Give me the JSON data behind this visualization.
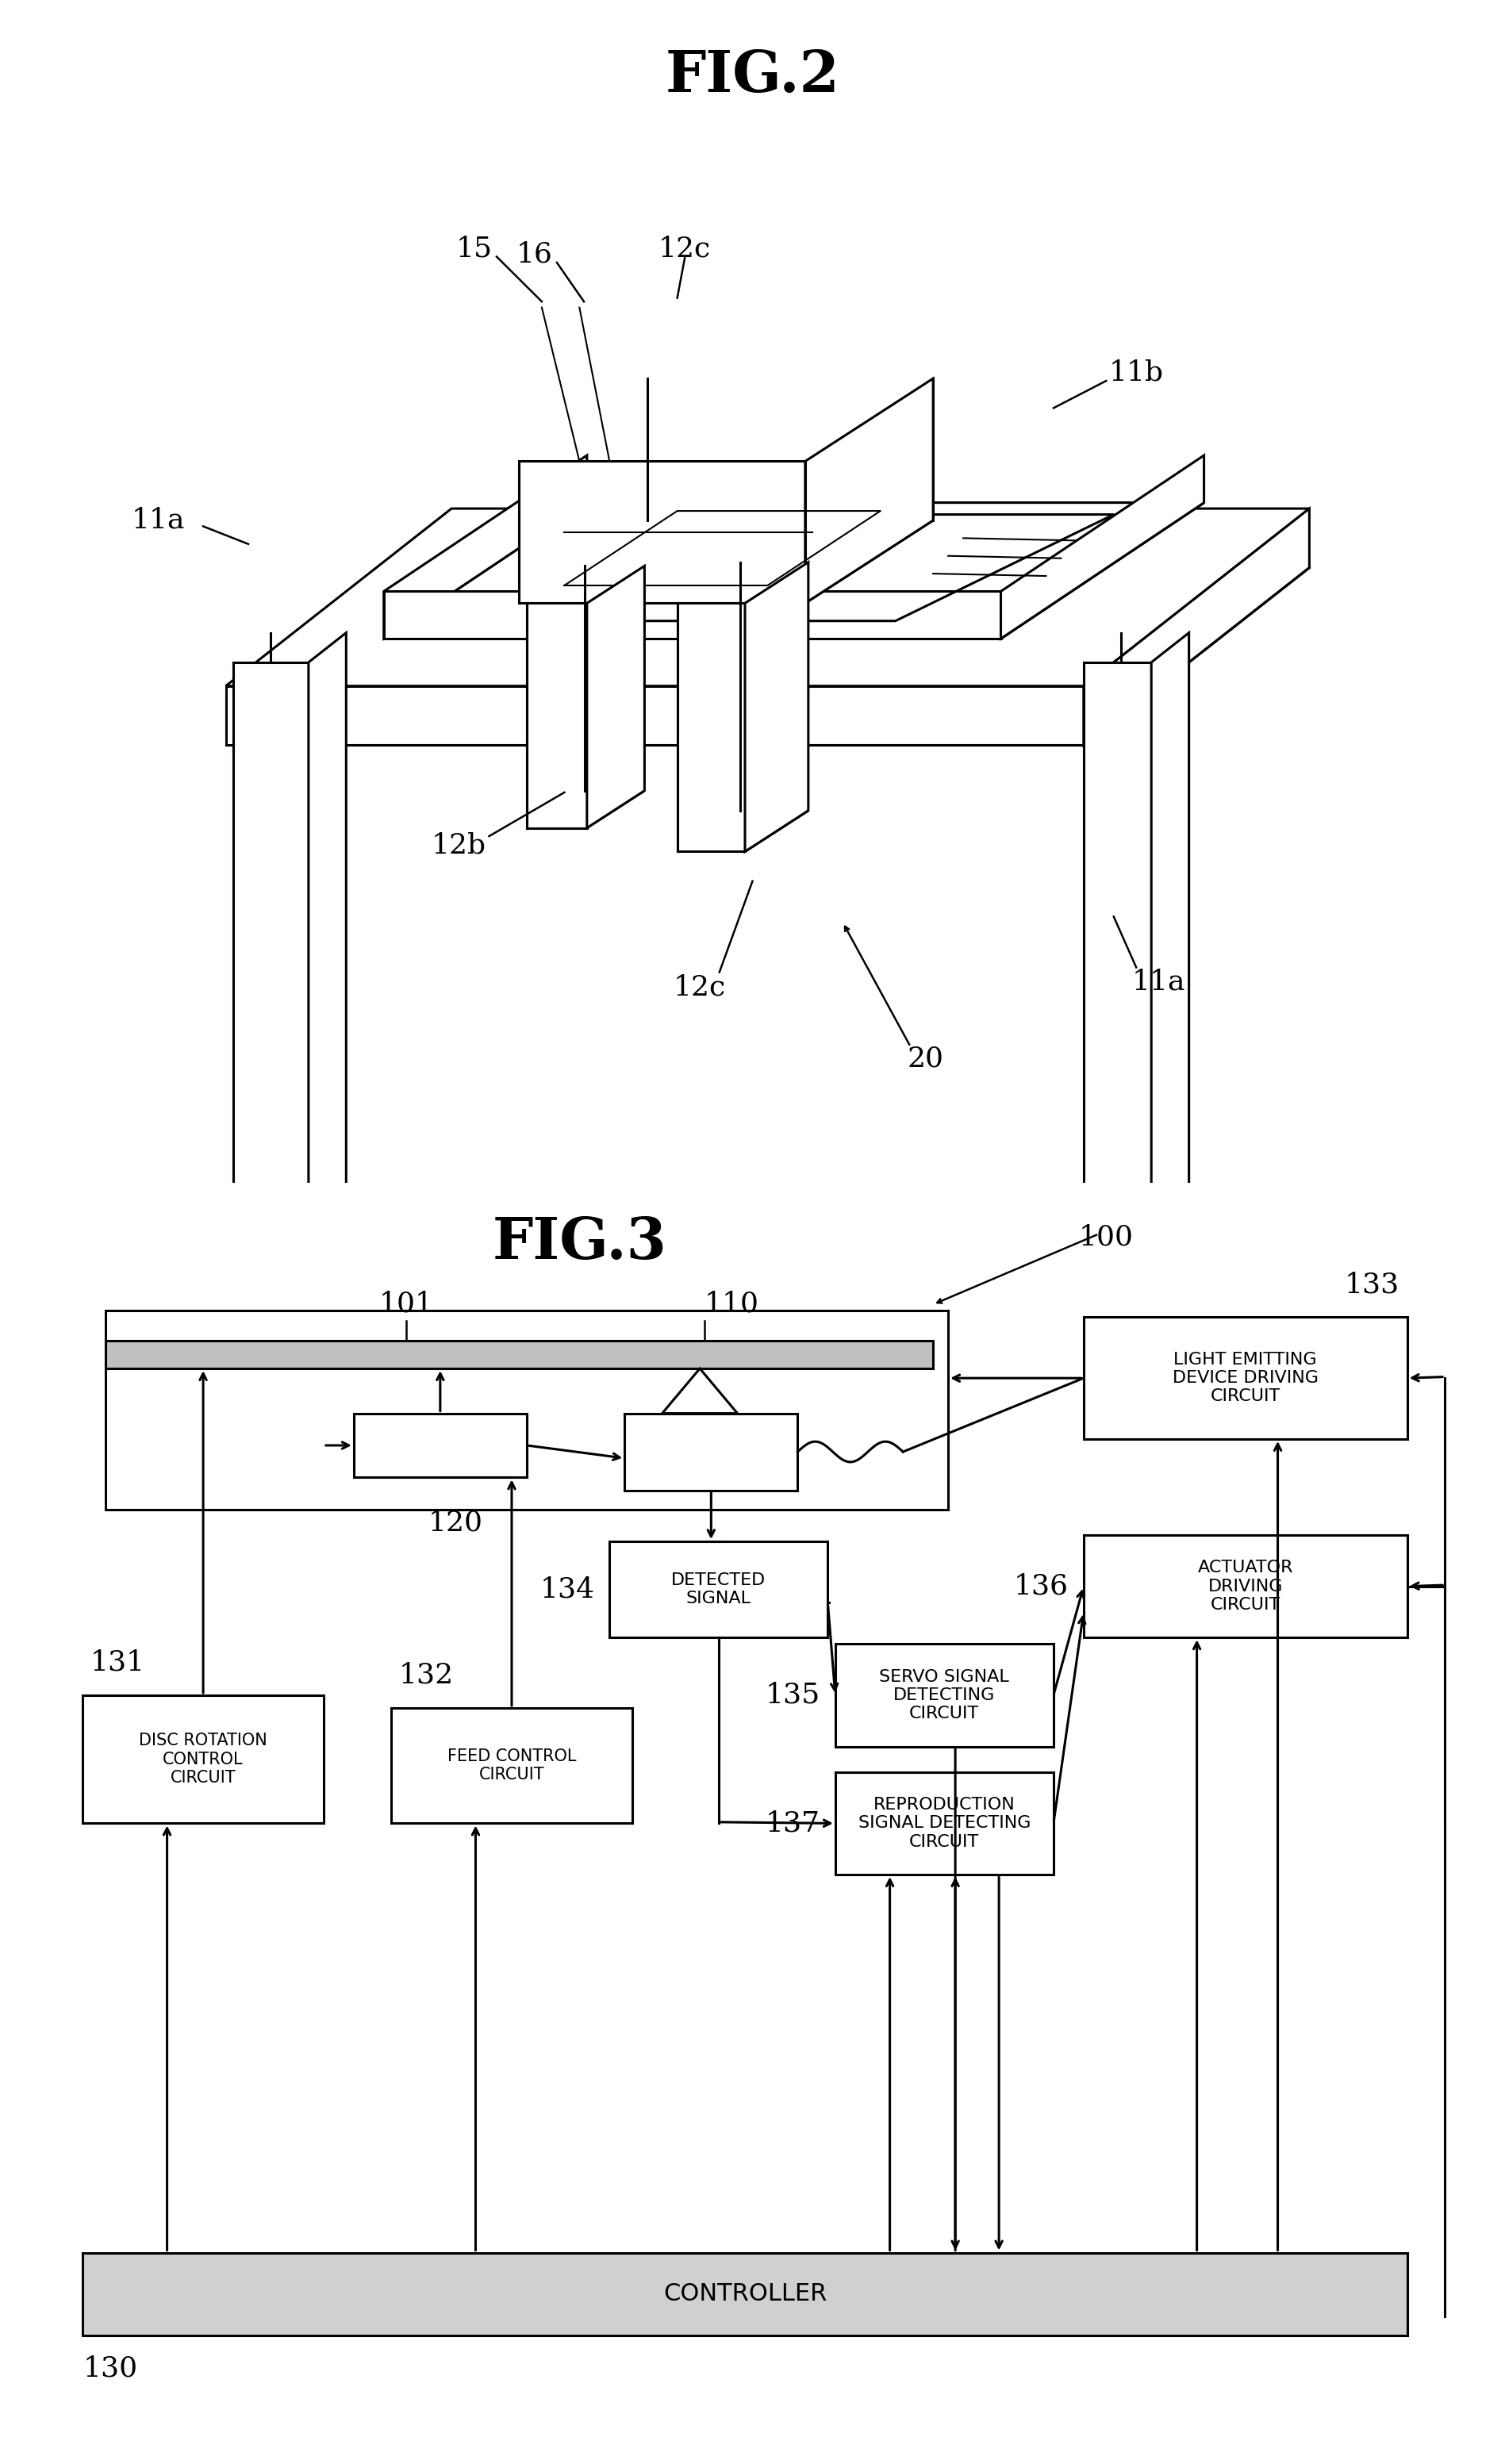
{
  "fig2_title": "FIG.2",
  "fig3_title": "FIG.3",
  "bg_color": "#ffffff",
  "line_color": "#000000",
  "controller_text": "CONTROLLER",
  "disc_rotation_text": "DISC ROTATION\nCONTROL\nCIRCUIT",
  "feed_control_text": "FEED CONTROL\nCIRCUIT",
  "detected_signal_text": "DETECTED\nSIGNAL",
  "servo_signal_text": "SERVO SIGNAL\nDETECTING\nCIRCUIT",
  "actuator_driving_text": "ACTUATOR\nDRIVING\nCIRCUIT",
  "reproduction_signal_text": "REPRODUCTION\nSIGNAL DETECTING\nCIRCUIT",
  "light_emitting_text": "LIGHT EMITTING\nDEVICE DRIVING\nCIRCUIT"
}
